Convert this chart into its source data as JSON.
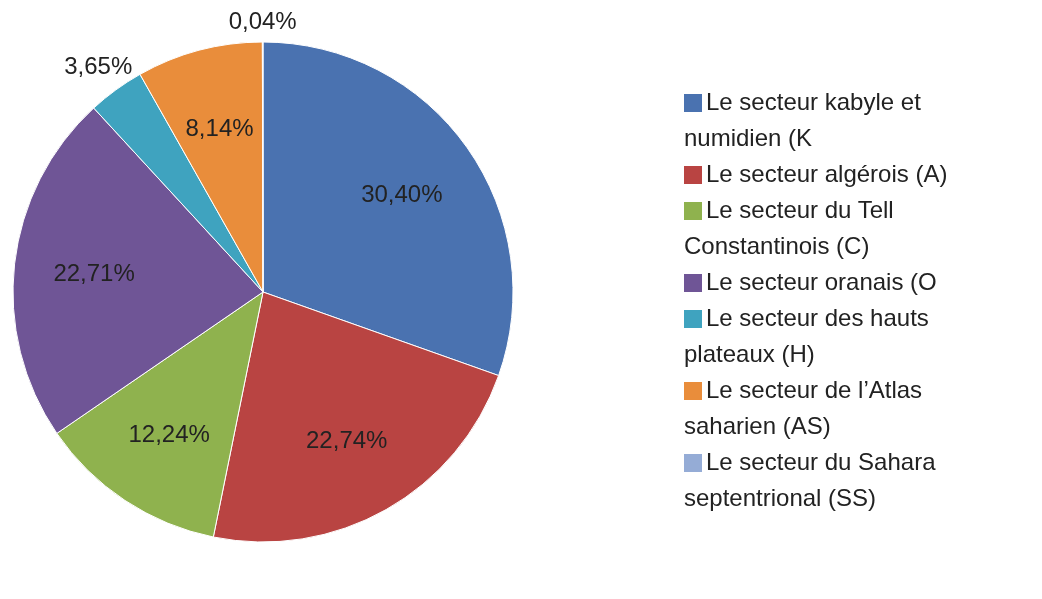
{
  "chart_data": {
    "type": "pie",
    "categories": [
      "Le secteur kabyle et numidien (K",
      "Le secteur algérois (A)",
      "Le secteur du Tell Constantinois (C)",
      "Le secteur oranais (O",
      "Le secteur des hauts plateaux (H)",
      "Le secteur de l’Atlas saharien (AS)",
      "Le secteur du Sahara septentrional (SS)"
    ],
    "values": [
      30.4,
      22.74,
      12.24,
      22.71,
      3.65,
      8.14,
      0.04
    ],
    "value_labels": [
      "30,40%",
      "22,74%",
      "12,24%",
      "22,71%",
      "3,65%",
      "8,14%",
      "0,04%"
    ],
    "colors": [
      "#4a72b0",
      "#b94442",
      "#8fb24e",
      "#6f5596",
      "#3fa3bf",
      "#e98d3b",
      "#95acd6"
    ],
    "legend": "right"
  }
}
